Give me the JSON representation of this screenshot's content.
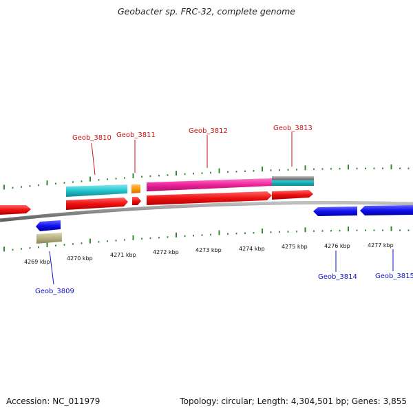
{
  "title": "Geobacter sp. FRC-32, complete genome",
  "footer": {
    "accession": "Accession: NC_011979",
    "summary": "Topology: circular; Length: 4,304,501 bp; Genes: 3,855"
  },
  "colors": {
    "backbone": "#8c8c8c",
    "tick": "#2e8b2e",
    "forward_cds": "#ee1111",
    "reverse_cds": "#1111ee",
    "rna": "#22c4cc",
    "pink": "#ee2299",
    "orange": "#ff9900",
    "khaki": "#b8b080",
    "top_label": "#cc1111",
    "bottom_label": "#1111cc"
  },
  "kbp_labels": [
    "4269 kbp",
    "4270 kbp",
    "4271 kbp",
    "4272 kbp",
    "4273 kbp",
    "4274 kbp",
    "4275 kbp",
    "4276 kbp",
    "4277 kbp"
  ],
  "top_genes": [
    "Geob_3810",
    "Geob_3811",
    "Geob_3812",
    "Geob_3813"
  ],
  "bottom_genes": [
    "Geob_3809",
    "Geob_3814",
    "Geob_3815"
  ]
}
